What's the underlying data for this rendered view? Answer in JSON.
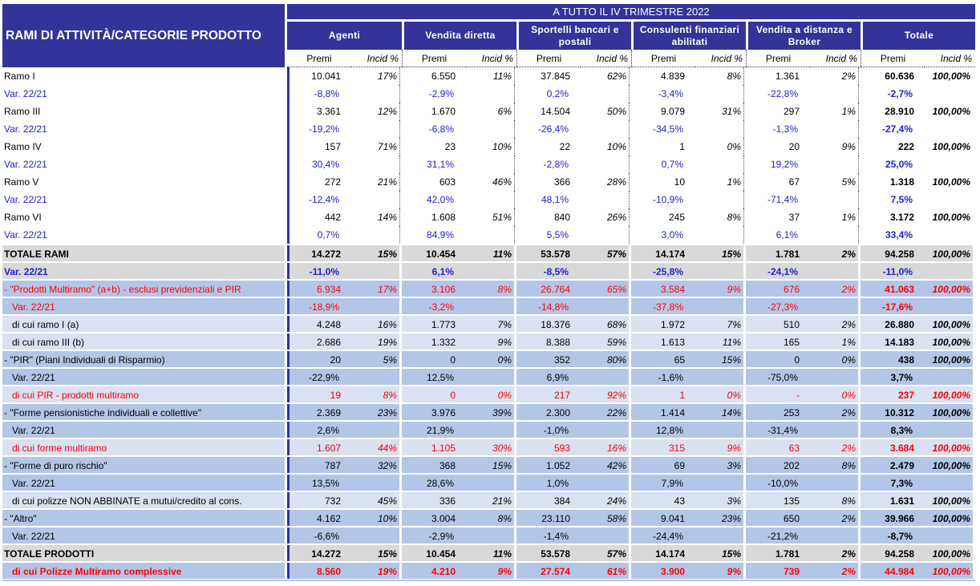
{
  "header": {
    "title": "RAMI DI ATTIVITÀ/CATEGORIE PRODOTTO",
    "period": "A TUTTO IL IV TRIMESTRE 2022",
    "groups": [
      "Agenti",
      "Vendita diretta",
      "Sportelli bancari e postali",
      "Consulenti finanziari abilitati",
      "Vendita a distanza e Broker",
      "Totale"
    ],
    "premi_label": "Premi",
    "incid_label": "Incid %"
  },
  "colors": {
    "header_bg": "#333399",
    "blue_row": "#b4c6e7",
    "light_row": "#d9e1f2",
    "total_row": "#d9d9d9",
    "variation_text": "#2222cc",
    "multiramo_text": "#ff0000"
  },
  "rows": [
    {
      "label": "Ramo I",
      "style": "",
      "cells": [
        "10.041",
        "17%",
        "6.550",
        "11%",
        "37.845",
        "62%",
        "4.839",
        "8%",
        "1.361",
        "2%",
        "60.636",
        "100,00%"
      ]
    },
    {
      "label": "Var. 22/21",
      "style": "var",
      "cells": [
        "-8,8%",
        "",
        "-2,9%",
        "",
        "0,2%",
        "",
        "-3,4%",
        "",
        "-22,8%",
        "",
        "-2,7%",
        ""
      ]
    },
    {
      "label": "Ramo III",
      "style": "",
      "cells": [
        "3.361",
        "12%",
        "1.670",
        "6%",
        "14.504",
        "50%",
        "9.079",
        "31%",
        "297",
        "1%",
        "28.910",
        "100,00%"
      ]
    },
    {
      "label": "Var. 22/21",
      "style": "var",
      "cells": [
        "-19,2%",
        "",
        "-6,8%",
        "",
        "-26,4%",
        "",
        "-34,5%",
        "",
        "-1,3%",
        "",
        "-27,4%",
        ""
      ]
    },
    {
      "label": "Ramo IV",
      "style": "",
      "cells": [
        "157",
        "71%",
        "23",
        "10%",
        "22",
        "10%",
        "1",
        "0%",
        "20",
        "9%",
        "222",
        "100,00%"
      ]
    },
    {
      "label": "Var. 22/21",
      "style": "var",
      "cells": [
        "30,4%",
        "",
        "31,1%",
        "",
        "-2,8%",
        "",
        "0,7%",
        "",
        "19,2%",
        "",
        "25,0%",
        ""
      ]
    },
    {
      "label": "Ramo V",
      "style": "",
      "cells": [
        "272",
        "21%",
        "603",
        "46%",
        "366",
        "28%",
        "10",
        "1%",
        "67",
        "5%",
        "1.318",
        "100,00%"
      ]
    },
    {
      "label": "Var. 22/21",
      "style": "var",
      "cells": [
        "-12,4%",
        "",
        "42,0%",
        "",
        "48,1%",
        "",
        "-10,9%",
        "",
        "-71,4%",
        "",
        "7,5%",
        ""
      ]
    },
    {
      "label": "Ramo VI",
      "style": "",
      "cells": [
        "442",
        "14%",
        "1.608",
        "51%",
        "840",
        "26%",
        "245",
        "8%",
        "37",
        "1%",
        "3.172",
        "100,00%"
      ]
    },
    {
      "label": "Var. 22/21",
      "style": "var",
      "cells": [
        "0,7%",
        "",
        "84,9%",
        "",
        "5,5%",
        "",
        "3,0%",
        "",
        "6,1%",
        "",
        "33,4%",
        ""
      ]
    },
    {
      "label": "TOTALE RAMI",
      "style": "tot",
      "cells": [
        "14.272",
        "15%",
        "10.454",
        "11%",
        "53.578",
        "57%",
        "14.174",
        "15%",
        "1.781",
        "2%",
        "94.258",
        "100,00%"
      ]
    },
    {
      "label": "Var. 22/21",
      "style": "totvar",
      "cells": [
        "-11,0%",
        "",
        "6,1%",
        "",
        "-8,5%",
        "",
        "-25,8%",
        "",
        "-24,1%",
        "",
        "-11,0%",
        ""
      ]
    },
    {
      "label": "- \"Prodotti Multiramo\" (a+b) - esclusi previdenziali e PIR",
      "style": "bl red",
      "cells": [
        "6.934",
        "17%",
        "3.106",
        "8%",
        "26.764",
        "65%",
        "3.584",
        "9%",
        "676",
        "2%",
        "41.063",
        "100,00%"
      ]
    },
    {
      "label": "Var. 22/21",
      "style": "bl red ind vr",
      "cells": [
        "-18,9%",
        "",
        "-3,2%",
        "",
        "-14,8%",
        "",
        "-37,8%",
        "",
        "-27,3%",
        "",
        "-17,6%",
        ""
      ]
    },
    {
      "label": "di cui ramo I (a)",
      "style": "lt ind",
      "cells": [
        "4.248",
        "16%",
        "1.773",
        "7%",
        "18.376",
        "68%",
        "1.972",
        "7%",
        "510",
        "2%",
        "26.880",
        "100,00%"
      ]
    },
    {
      "label": "di cui ramo III (b)",
      "style": "lt ind",
      "cells": [
        "2.686",
        "19%",
        "1.332",
        "9%",
        "8.388",
        "59%",
        "1.613",
        "11%",
        "165",
        "1%",
        "14.183",
        "100,00%"
      ]
    },
    {
      "label": "- \"PIR\" (Piani Individuali di Risparmio)",
      "style": "bl",
      "cells": [
        "20",
        "5%",
        "0",
        "0%",
        "352",
        "80%",
        "65",
        "15%",
        "0",
        "0%",
        "438",
        "100,00%"
      ]
    },
    {
      "label": "Var. 22/21",
      "style": "bl ind vr",
      "cells": [
        "-22,9%",
        "",
        "12,5%",
        "",
        "6,9%",
        "",
        "-1,6%",
        "",
        "-75,0%",
        "",
        "3,7%",
        ""
      ]
    },
    {
      "label": "di cui PIR - prodotti multiramo",
      "style": "lt red ind",
      "cells": [
        "19",
        "8%",
        "0",
        "0%",
        "217",
        "92%",
        "1",
        "0%",
        "-",
        "0%",
        "237",
        "100,00%"
      ]
    },
    {
      "label": "- \"Forme pensionistiche individuali e collettive\"",
      "style": "bl",
      "cells": [
        "2.369",
        "23%",
        "3.976",
        "39%",
        "2.300",
        "22%",
        "1.414",
        "14%",
        "253",
        "2%",
        "10.312",
        "100,00%"
      ]
    },
    {
      "label": "Var. 22/21",
      "style": "bl ind vr",
      "cells": [
        "2,6%",
        "",
        "21,9%",
        "",
        "-1,0%",
        "",
        "12,8%",
        "",
        "-31,4%",
        "",
        "8,3%",
        ""
      ]
    },
    {
      "label": "di cui forme multiramo",
      "style": "lt red ind",
      "cells": [
        "1.607",
        "44%",
        "1.105",
        "30%",
        "593",
        "16%",
        "315",
        "9%",
        "63",
        "2%",
        "3.684",
        "100,00%"
      ]
    },
    {
      "label": "- \"Forme di puro rischio\"",
      "style": "bl",
      "cells": [
        "787",
        "32%",
        "368",
        "15%",
        "1.052",
        "42%",
        "69",
        "3%",
        "202",
        "8%",
        "2.479",
        "100,00%"
      ]
    },
    {
      "label": "Var. 22/21",
      "style": "bl ind vr",
      "cells": [
        "13,5%",
        "",
        "28,6%",
        "",
        "1,0%",
        "",
        "7,9%",
        "",
        "-10,0%",
        "",
        "7,3%",
        ""
      ]
    },
    {
      "label": "di cui polizze NON ABBINATE a mutui/credito al cons.",
      "style": "lt ind",
      "cells": [
        "732",
        "45%",
        "336",
        "21%",
        "384",
        "24%",
        "43",
        "3%",
        "135",
        "8%",
        "1.631",
        "100,00%"
      ]
    },
    {
      "label": "- \"Altro\"",
      "style": "bl",
      "cells": [
        "4.162",
        "10%",
        "3.004",
        "8%",
        "23.110",
        "58%",
        "9.041",
        "23%",
        "650",
        "2%",
        "39.966",
        "100,00%"
      ]
    },
    {
      "label": "Var. 22/21",
      "style": "bl ind vr",
      "cells": [
        "-6,6%",
        "",
        "-2,9%",
        "",
        "-1,4%",
        "",
        "-24,4%",
        "",
        "-21,2%",
        "",
        "-8,7%",
        ""
      ]
    },
    {
      "label": "TOTALE PRODOTTI",
      "style": "tot",
      "cells": [
        "14.272",
        "15%",
        "10.454",
        "11%",
        "53.578",
        "57%",
        "14.174",
        "15%",
        "1.781",
        "2%",
        "94.258",
        "100,00%"
      ]
    },
    {
      "label": "di cui Polizze Multiramo complessive",
      "style": "bl red ind bold",
      "cells": [
        "8.560",
        "19%",
        "4.210",
        "9%",
        "27.574",
        "61%",
        "3.900",
        "9%",
        "739",
        "2%",
        "44.984",
        "100,00%"
      ]
    }
  ]
}
